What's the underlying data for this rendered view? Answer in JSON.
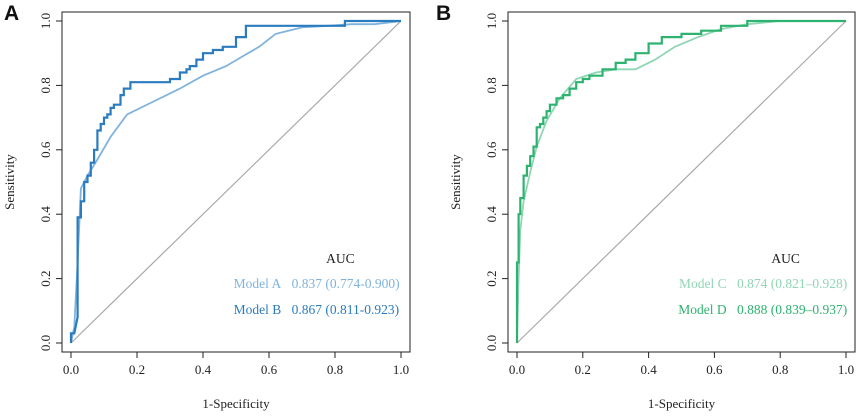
{
  "figure": {
    "panels": [
      "A",
      "B"
    ]
  },
  "chart_data": [
    {
      "type": "line",
      "panel_label": "A",
      "xlabel": "1-Specificity",
      "ylabel": "Sensitivity",
      "xlim": [
        0.0,
        1.0
      ],
      "ylim": [
        0.0,
        1.0
      ],
      "xticks": [
        "0.0",
        "0.2",
        "0.4",
        "0.6",
        "0.8",
        "1.0"
      ],
      "yticks": [
        "0.0",
        "0.2",
        "0.4",
        "0.6",
        "0.8",
        "1.0"
      ],
      "reference_line": [
        [
          0,
          0
        ],
        [
          1,
          1
        ]
      ],
      "legend": {
        "header": "AUC",
        "placement": "bottom-right"
      },
      "series": [
        {
          "name": "Model A",
          "auc_text": "0.837 (0.774-0.900)",
          "color": "#7fb3de",
          "step": false,
          "x": [
            0.0,
            0.01,
            0.02,
            0.03,
            0.05,
            0.08,
            0.12,
            0.17,
            0.25,
            0.33,
            0.4,
            0.47,
            0.52,
            0.57,
            0.62,
            0.7,
            0.78,
            0.85,
            0.92,
            1.0
          ],
          "y": [
            0.0,
            0.05,
            0.25,
            0.48,
            0.52,
            0.57,
            0.64,
            0.71,
            0.75,
            0.79,
            0.83,
            0.86,
            0.89,
            0.92,
            0.96,
            0.98,
            0.985,
            0.99,
            0.99,
            1.0
          ]
        },
        {
          "name": "Model B",
          "auc_text": "0.867 (0.811-0.923)",
          "color": "#2b7bbf",
          "step": true,
          "x": [
            0.0,
            0.0,
            0.01,
            0.02,
            0.02,
            0.02,
            0.02,
            0.03,
            0.03,
            0.04,
            0.04,
            0.05,
            0.05,
            0.06,
            0.06,
            0.07,
            0.07,
            0.08,
            0.08,
            0.09,
            0.09,
            0.1,
            0.1,
            0.11,
            0.11,
            0.12,
            0.12,
            0.13,
            0.13,
            0.15,
            0.15,
            0.16,
            0.16,
            0.18,
            0.18,
            0.24,
            0.24,
            0.3,
            0.3,
            0.33,
            0.33,
            0.35,
            0.35,
            0.36,
            0.36,
            0.38,
            0.38,
            0.4,
            0.4,
            0.43,
            0.43,
            0.46,
            0.46,
            0.5,
            0.5,
            0.53,
            0.53,
            0.83,
            0.83,
            1.0
          ],
          "y": [
            0.0,
            0.03,
            0.03,
            0.08,
            0.2,
            0.3,
            0.39,
            0.39,
            0.44,
            0.44,
            0.5,
            0.5,
            0.52,
            0.52,
            0.56,
            0.56,
            0.6,
            0.6,
            0.66,
            0.66,
            0.68,
            0.68,
            0.7,
            0.7,
            0.71,
            0.71,
            0.73,
            0.73,
            0.74,
            0.74,
            0.77,
            0.77,
            0.79,
            0.79,
            0.81,
            0.81,
            0.81,
            0.81,
            0.82,
            0.82,
            0.84,
            0.84,
            0.85,
            0.85,
            0.86,
            0.86,
            0.88,
            0.88,
            0.9,
            0.9,
            0.91,
            0.91,
            0.92,
            0.92,
            0.95,
            0.95,
            0.985,
            0.985,
            1.0,
            1.0
          ]
        }
      ]
    },
    {
      "type": "line",
      "panel_label": "B",
      "xlabel": "1-Specificity",
      "ylabel": "Sensitivity",
      "xlim": [
        0.0,
        1.0
      ],
      "ylim": [
        0.0,
        1.0
      ],
      "xticks": [
        "0.0",
        "0.2",
        "0.4",
        "0.6",
        "0.8",
        "1.0"
      ],
      "yticks": [
        "0.0",
        "0.2",
        "0.4",
        "0.6",
        "0.8",
        "1.0"
      ],
      "reference_line": [
        [
          0,
          0
        ],
        [
          1,
          1
        ]
      ],
      "legend": {
        "header": "AUC",
        "placement": "bottom-right"
      },
      "series": [
        {
          "name": "Model C",
          "auc_text": "0.874 (0.821–0.928)",
          "color": "#8fd6b4",
          "step": false,
          "x": [
            0.0,
            0.005,
            0.01,
            0.02,
            0.04,
            0.06,
            0.09,
            0.13,
            0.18,
            0.24,
            0.3,
            0.36,
            0.42,
            0.48,
            0.55,
            0.62,
            0.7,
            0.8,
            0.9,
            1.0
          ],
          "y": [
            0.0,
            0.2,
            0.35,
            0.44,
            0.53,
            0.61,
            0.69,
            0.76,
            0.82,
            0.84,
            0.85,
            0.85,
            0.88,
            0.92,
            0.95,
            0.975,
            0.99,
            1.0,
            1.0,
            1.0
          ]
        },
        {
          "name": "Model D",
          "auc_text": "0.888 (0.839–0.937)",
          "color": "#2db36f",
          "step": true,
          "x": [
            0.0,
            0.0,
            0.005,
            0.005,
            0.01,
            0.01,
            0.02,
            0.02,
            0.03,
            0.03,
            0.04,
            0.04,
            0.05,
            0.05,
            0.06,
            0.06,
            0.07,
            0.07,
            0.08,
            0.08,
            0.09,
            0.09,
            0.1,
            0.1,
            0.12,
            0.12,
            0.14,
            0.14,
            0.16,
            0.16,
            0.18,
            0.18,
            0.2,
            0.2,
            0.22,
            0.22,
            0.26,
            0.26,
            0.3,
            0.3,
            0.33,
            0.33,
            0.36,
            0.36,
            0.4,
            0.4,
            0.44,
            0.44,
            0.5,
            0.5,
            0.56,
            0.56,
            0.62,
            0.62,
            0.7,
            0.7,
            1.0
          ],
          "y": [
            0.0,
            0.25,
            0.25,
            0.4,
            0.4,
            0.45,
            0.45,
            0.52,
            0.52,
            0.55,
            0.55,
            0.58,
            0.58,
            0.61,
            0.61,
            0.67,
            0.67,
            0.68,
            0.68,
            0.7,
            0.7,
            0.72,
            0.72,
            0.74,
            0.74,
            0.76,
            0.76,
            0.77,
            0.77,
            0.79,
            0.79,
            0.81,
            0.81,
            0.82,
            0.82,
            0.83,
            0.83,
            0.85,
            0.85,
            0.87,
            0.87,
            0.88,
            0.88,
            0.9,
            0.9,
            0.93,
            0.93,
            0.95,
            0.95,
            0.96,
            0.96,
            0.97,
            0.97,
            0.985,
            0.985,
            1.0,
            1.0
          ]
        }
      ]
    }
  ]
}
